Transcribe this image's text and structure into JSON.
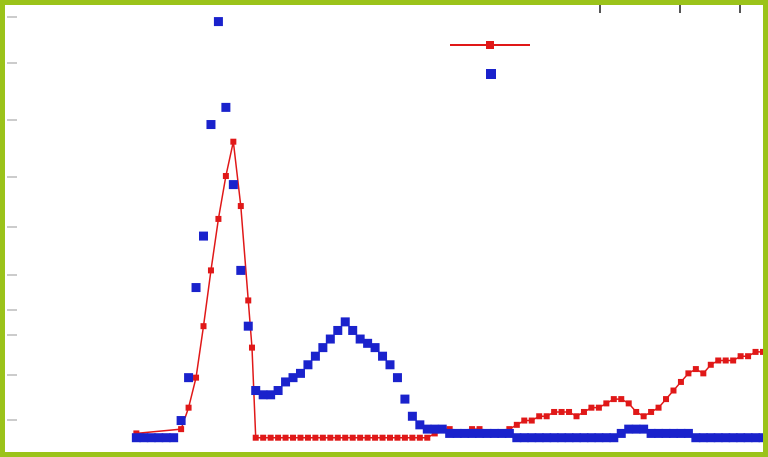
{
  "colors": {
    "frame": "#9bc31a",
    "series_red": "#e01818",
    "series_blue": "#1a22cc",
    "ticks": "#9a9a9a"
  },
  "chart_data": {
    "type": "scatter",
    "title": "",
    "xlabel": "",
    "ylabel": "",
    "xlim": [
      0,
      100
    ],
    "ylim": [
      0,
      100
    ],
    "grid": false,
    "legend": {
      "placement": "top-center",
      "entries": [
        {
          "series": 0,
          "marker": "line-with-square"
        },
        {
          "series": 1,
          "marker": "square"
        }
      ]
    },
    "series": [
      {
        "color": "#e01818",
        "marker": "square-small",
        "connected": true,
        "x": [
          16,
          22,
          23,
          24,
          25,
          26,
          27,
          28,
          29,
          30,
          31,
          31.5,
          32,
          33,
          34,
          35,
          36,
          37,
          38,
          39,
          40,
          41,
          42,
          43,
          44,
          45,
          46,
          47,
          48,
          49,
          50,
          51,
          52,
          53,
          54,
          55,
          56,
          57,
          58,
          59,
          60,
          61,
          62,
          63,
          64,
          65,
          66,
          67,
          68,
          69,
          70,
          71,
          72,
          73,
          74,
          75,
          76,
          77,
          78,
          79,
          80,
          81,
          82,
          83,
          84,
          85,
          86,
          87,
          88,
          89,
          90,
          91,
          92,
          93,
          94,
          95,
          96,
          97,
          98,
          99,
          100
        ],
        "y": [
          2,
          3,
          8,
          15,
          27,
          40,
          52,
          62,
          70,
          55,
          33,
          22,
          1,
          1,
          1,
          1,
          1,
          1,
          1,
          1,
          1,
          1,
          1,
          1,
          1,
          1,
          1,
          1,
          1,
          1,
          1,
          1,
          1,
          1,
          1,
          1,
          2,
          3,
          3,
          2,
          2,
          3,
          3,
          2,
          2,
          2,
          3,
          4,
          5,
          5,
          6,
          6,
          7,
          7,
          7,
          6,
          7,
          8,
          8,
          9,
          10,
          10,
          9,
          7,
          6,
          7,
          8,
          10,
          12,
          14,
          16,
          17,
          16,
          18,
          19,
          19,
          19,
          20,
          20,
          21,
          21
        ]
      },
      {
        "color": "#1a22cc",
        "marker": "square",
        "connected": false,
        "x": [
          16,
          17,
          18,
          19,
          20,
          21,
          22,
          23,
          24,
          25,
          26,
          27,
          28,
          29,
          30,
          31,
          32,
          33,
          34,
          35,
          36,
          37,
          38,
          39,
          40,
          41,
          42,
          43,
          44,
          45,
          46,
          47,
          48,
          49,
          50,
          51,
          52,
          53,
          54,
          55,
          56,
          57,
          58,
          59,
          60,
          61,
          62,
          63,
          64,
          65,
          66,
          67,
          68,
          69,
          70,
          71,
          72,
          73,
          74,
          75,
          76,
          77,
          78,
          79,
          80,
          81,
          82,
          83,
          84,
          85,
          86,
          87,
          88,
          89,
          90,
          91,
          92,
          93,
          94,
          95,
          96,
          97,
          98,
          99,
          100
        ],
        "y": [
          1,
          1,
          1,
          1,
          1,
          1,
          5,
          15,
          36,
          48,
          74,
          98,
          78,
          60,
          40,
          27,
          12,
          11,
          11,
          12,
          14,
          15,
          16,
          18,
          20,
          22,
          24,
          26,
          28,
          26,
          24,
          23,
          22,
          20,
          18,
          15,
          10,
          6,
          4,
          3,
          3,
          3,
          2,
          2,
          2,
          2,
          2,
          2,
          2,
          2,
          2,
          1,
          1,
          1,
          1,
          1,
          1,
          1,
          1,
          1,
          1,
          1,
          1,
          1,
          1,
          2,
          3,
          3,
          3,
          2,
          2,
          2,
          2,
          2,
          2,
          1,
          1,
          1,
          1,
          1,
          1,
          1,
          1,
          1,
          1
        ]
      }
    ]
  }
}
